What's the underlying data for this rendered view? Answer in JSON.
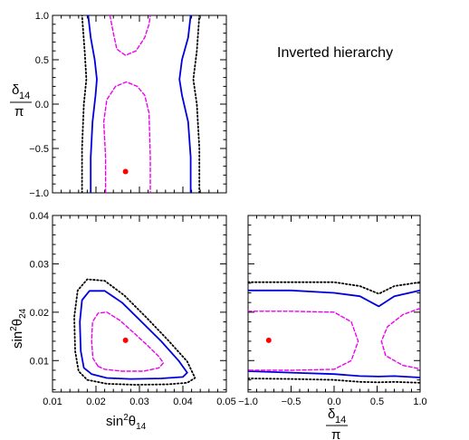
{
  "figure_title": "Inverted hierarchy",
  "colors": {
    "contour_outer_dotted": "#000000",
    "contour_solid": "#0000dd",
    "contour_dashed": "#ee00ee",
    "best_fit": "#ff0000"
  },
  "chart_data": [
    {
      "id": "panel-top-left",
      "type": "contour",
      "xlim": [
        0.01,
        0.05
      ],
      "ylim": [
        -1.0,
        1.0
      ],
      "xticks": [],
      "xtick_labels_shown": false,
      "yticks": [
        -1.0,
        -0.5,
        0.0,
        0.5,
        1.0
      ],
      "ytick_labels": [
        "−1.0",
        "−0.5",
        "0.0",
        "0.5",
        "1.0"
      ],
      "ylabel_num": "δ",
      "ylabel_sub": "14",
      "ylabel_den": "π",
      "best_fit": {
        "x": 0.0268,
        "y": -0.76
      },
      "contours": {
        "dashed": [
          [
            [
              0.0222,
              -1.0
            ],
            [
              0.0222,
              -0.6
            ],
            [
              0.0218,
              -0.2
            ],
            [
              0.0225,
              0.05
            ],
            [
              0.0245,
              0.2
            ],
            [
              0.027,
              0.25
            ],
            [
              0.0295,
              0.2
            ],
            [
              0.0312,
              0.1
            ],
            [
              0.0322,
              -0.1
            ],
            [
              0.0325,
              -0.6
            ],
            [
              0.0325,
              -1.0
            ]
          ],
          [
            [
              0.0232,
              1.0
            ],
            [
              0.024,
              0.8
            ],
            [
              0.0248,
              0.62
            ],
            [
              0.0268,
              0.55
            ],
            [
              0.0292,
              0.6
            ],
            [
              0.0312,
              0.75
            ],
            [
              0.0322,
              0.9
            ],
            [
              0.0325,
              1.0
            ]
          ]
        ],
        "solid": [
          [
            [
              0.0188,
              -1.0
            ],
            [
              0.0188,
              -0.6
            ],
            [
              0.0192,
              -0.2
            ],
            [
              0.0199,
              0.1
            ],
            [
              0.0202,
              0.28
            ],
            [
              0.0197,
              0.5
            ],
            [
              0.0188,
              0.75
            ],
            [
              0.0182,
              1.0
            ]
          ],
          [
            [
              0.0418,
              -1.0
            ],
            [
              0.0418,
              -0.6
            ],
            [
              0.0412,
              -0.2
            ],
            [
              0.0398,
              0.1
            ],
            [
              0.0392,
              0.28
            ],
            [
              0.0398,
              0.5
            ],
            [
              0.0412,
              0.75
            ],
            [
              0.0418,
              1.0
            ]
          ]
        ],
        "dotted": [
          [
            [
              0.0168,
              -1.0
            ],
            [
              0.0168,
              -0.5
            ],
            [
              0.0172,
              0.0
            ],
            [
              0.0178,
              0.28
            ],
            [
              0.0174,
              0.6
            ],
            [
              0.0168,
              1.0
            ]
          ],
          [
            [
              0.0438,
              -1.0
            ],
            [
              0.0438,
              -0.5
            ],
            [
              0.0432,
              0.0
            ],
            [
              0.0424,
              0.28
            ],
            [
              0.0432,
              0.6
            ],
            [
              0.0438,
              1.0
            ]
          ]
        ]
      }
    },
    {
      "id": "panel-bottom-left",
      "type": "contour",
      "xlim": [
        0.01,
        0.05
      ],
      "ylim": [
        0.0035,
        0.04
      ],
      "xticks": [
        0.01,
        0.02,
        0.03,
        0.04,
        0.05
      ],
      "xtick_labels": [
        "0.01",
        "0.02",
        "0.03",
        "0.04",
        "0.05"
      ],
      "yticks": [
        0.01,
        0.02,
        0.03,
        0.04
      ],
      "ytick_labels": [
        "0.01",
        "0.02",
        "0.03",
        "0.04"
      ],
      "xlabel_base": "sin",
      "xlabel_sup": "2",
      "xlabel_sym": "θ",
      "xlabel_sub": "14",
      "ylabel_base": "sin",
      "ylabel_sup": "2",
      "ylabel_sym": "θ",
      "ylabel_sub": "24",
      "best_fit": {
        "x": 0.0268,
        "y": 0.0142
      },
      "contours": {
        "dashed": [
          [
            [
              0.0205,
              0.0088
            ],
            [
              0.022,
              0.0082
            ],
            [
              0.026,
              0.0078
            ],
            [
              0.031,
              0.0078
            ],
            [
              0.0345,
              0.0085
            ],
            [
              0.0355,
              0.0095
            ],
            [
              0.0345,
              0.0108
            ],
            [
              0.032,
              0.013
            ],
            [
              0.029,
              0.0155
            ],
            [
              0.0255,
              0.0183
            ],
            [
              0.0225,
              0.02
            ],
            [
              0.0205,
              0.0198
            ],
            [
              0.0192,
              0.018
            ],
            [
              0.019,
              0.014
            ],
            [
              0.0193,
              0.0105
            ],
            [
              0.0205,
              0.0088
            ]
          ]
        ],
        "solid": [
          [
            [
              0.019,
              0.0072
            ],
            [
              0.0225,
              0.0064
            ],
            [
              0.028,
              0.0062
            ],
            [
              0.035,
              0.0063
            ],
            [
              0.04,
              0.0066
            ],
            [
              0.041,
              0.0075
            ],
            [
              0.039,
              0.01
            ],
            [
              0.035,
              0.014
            ],
            [
              0.0305,
              0.018
            ],
            [
              0.026,
              0.022
            ],
            [
              0.022,
              0.0244
            ],
            [
              0.0185,
              0.0244
            ],
            [
              0.0168,
              0.0225
            ],
            [
              0.0163,
              0.018
            ],
            [
              0.0165,
              0.012
            ],
            [
              0.0172,
              0.0085
            ],
            [
              0.019,
              0.0072
            ]
          ]
        ],
        "dotted": [
          [
            [
              0.018,
              0.006
            ],
            [
              0.0225,
              0.0052
            ],
            [
              0.029,
              0.005
            ],
            [
              0.0365,
              0.0051
            ],
            [
              0.041,
              0.0054
            ],
            [
              0.0428,
              0.0064
            ],
            [
              0.041,
              0.0098
            ],
            [
              0.0365,
              0.0143
            ],
            [
              0.0315,
              0.019
            ],
            [
              0.0265,
              0.0235
            ],
            [
              0.022,
              0.0265
            ],
            [
              0.018,
              0.0268
            ],
            [
              0.0158,
              0.0245
            ],
            [
              0.015,
              0.019
            ],
            [
              0.0152,
              0.012
            ],
            [
              0.016,
              0.0078
            ],
            [
              0.018,
              0.006
            ]
          ]
        ]
      }
    },
    {
      "id": "panel-bottom-right",
      "type": "contour",
      "xlim": [
        -1.0,
        1.0
      ],
      "ylim": [
        0.0035,
        0.04
      ],
      "xticks": [
        -1.0,
        -0.5,
        0.0,
        0.5,
        1.0
      ],
      "xtick_labels": [
        "−1.0",
        "−0.5",
        "0.0",
        "0.5",
        "1.0"
      ],
      "yticks": [
        0.01,
        0.02,
        0.03,
        0.04
      ],
      "ytick_labels_shown": false,
      "xlabel_num": "δ",
      "xlabel_sub": "14",
      "xlabel_den": "π",
      "best_fit": {
        "x": -0.76,
        "y": 0.0142
      },
      "contours": {
        "dashed": [
          [
            [
              -1.0,
              0.0202
            ],
            [
              -0.5,
              0.0202
            ],
            [
              0.0,
              0.02
            ],
            [
              0.2,
              0.018
            ],
            [
              0.28,
              0.014
            ],
            [
              0.2,
              0.01
            ],
            [
              0.0,
              0.0082
            ],
            [
              -0.5,
              0.008
            ],
            [
              -1.0,
              0.008
            ]
          ],
          [
            [
              1.0,
              0.0208
            ],
            [
              0.8,
              0.0195
            ],
            [
              0.62,
              0.017
            ],
            [
              0.55,
              0.014
            ],
            [
              0.6,
              0.011
            ],
            [
              0.8,
              0.009
            ],
            [
              1.0,
              0.0083
            ]
          ]
        ],
        "solid": [
          [
            [
              -1.0,
              0.0245
            ],
            [
              -0.5,
              0.0245
            ],
            [
              0.0,
              0.024
            ],
            [
              0.3,
              0.0233
            ],
            [
              0.52,
              0.0212
            ],
            [
              0.7,
              0.0233
            ],
            [
              1.0,
              0.0245
            ]
          ],
          [
            [
              -1.0,
              0.0078
            ],
            [
              -0.5,
              0.0075
            ],
            [
              0.0,
              0.0072
            ],
            [
              0.3,
              0.0068
            ],
            [
              0.52,
              0.0067
            ],
            [
              0.7,
              0.0068
            ],
            [
              1.0,
              0.0065
            ]
          ]
        ],
        "dotted": [
          [
            [
              -1.0,
              0.0262
            ],
            [
              -0.5,
              0.0262
            ],
            [
              0.0,
              0.0262
            ],
            [
              0.3,
              0.0254
            ],
            [
              0.52,
              0.0238
            ],
            [
              0.7,
              0.0254
            ],
            [
              1.0,
              0.0262
            ]
          ],
          [
            [
              -1.0,
              0.0063
            ],
            [
              -0.5,
              0.0062
            ],
            [
              0.0,
              0.006
            ],
            [
              0.3,
              0.0056
            ],
            [
              0.52,
              0.0055
            ],
            [
              0.7,
              0.0056
            ],
            [
              1.0,
              0.0054
            ]
          ]
        ]
      }
    }
  ]
}
